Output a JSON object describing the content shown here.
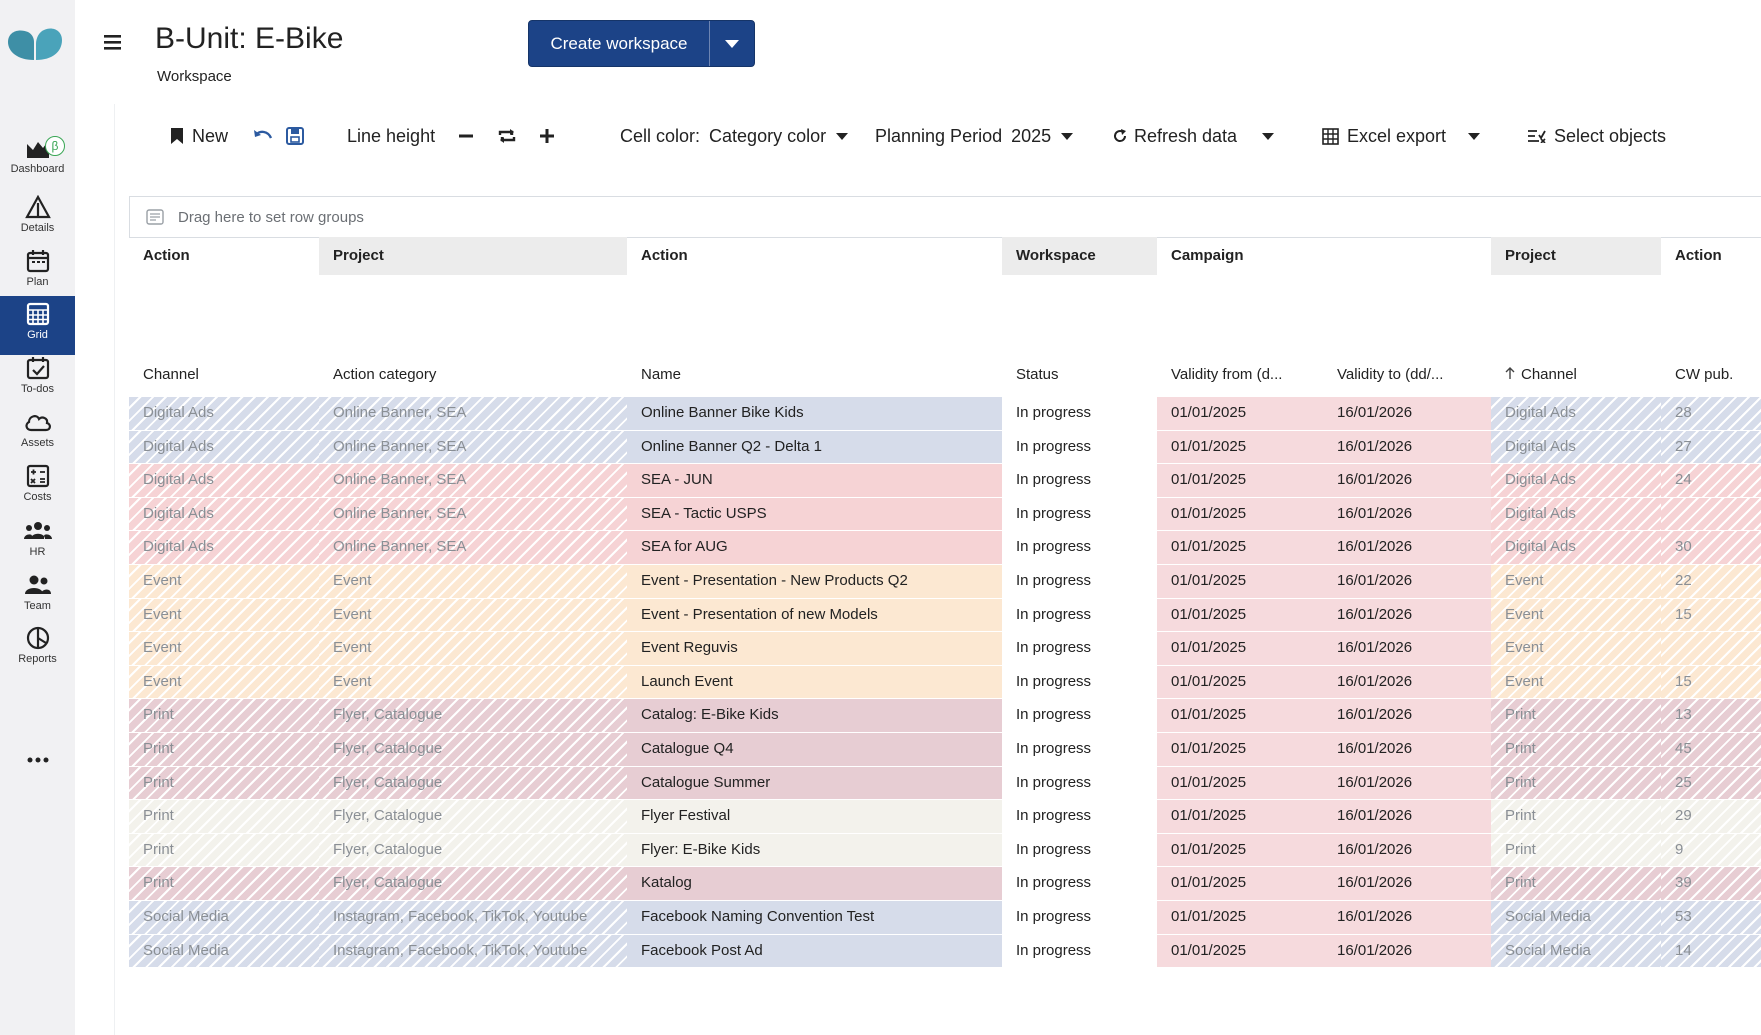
{
  "nav": [
    {
      "label": "Dashboard",
      "icon": "dashboard-icon"
    },
    {
      "label": "Details",
      "icon": "details-icon"
    },
    {
      "label": "Plan",
      "icon": "plan-calendar-icon"
    },
    {
      "label": "Grid",
      "icon": "grid-icon",
      "active": true
    },
    {
      "label": "To-dos",
      "icon": "todo-icon"
    },
    {
      "label": "Assets",
      "icon": "cloud-icon"
    },
    {
      "label": "Costs",
      "icon": "costs-icon"
    },
    {
      "label": "HR",
      "icon": "hr-group-icon"
    },
    {
      "label": "Team",
      "icon": "team-icon"
    },
    {
      "label": "Reports",
      "icon": "reports-icon"
    }
  ],
  "beta_badge": "β",
  "more_icon": "more-dots-icon",
  "header": {
    "title": "B-Unit: E-Bike",
    "subtitle": "Workspace",
    "create_button": "Create workspace"
  },
  "toolbar": {
    "new_label": "New",
    "line_height_label": "Line height",
    "cell_color_label": "Cell color:",
    "cell_color_value": "Category color",
    "planning_period_label": "Planning Period",
    "planning_period_value": "2025",
    "refresh_label": "Refresh data",
    "excel_label": "Excel export",
    "select_objects_label": "Select objects"
  },
  "group_bar": {
    "placeholder": "Drag here to set row groups"
  },
  "grid": {
    "group_headers": [
      "Action",
      "Project",
      "Action",
      "Workspace",
      "Campaign",
      "Project",
      "Action"
    ],
    "columns": [
      "Channel",
      "Action category",
      "Name",
      "Status",
      "Validity from (d...",
      "Validity to (dd/...",
      "Channel",
      "CW pub."
    ],
    "sort_icon": "sort-ascending-icon",
    "rows": [
      {
        "channel": "Digital Ads",
        "category": "Online Banner, SEA",
        "name": "Online Banner Bike Kids",
        "status": "In progress",
        "from": "01/01/2025",
        "to": "16/01/2026",
        "channel2": "Digital Ads",
        "cw": "28",
        "color": "#d6dcea"
      },
      {
        "channel": "Digital Ads",
        "category": "Online Banner, SEA",
        "name": "Online Banner Q2 - Delta 1",
        "status": "In progress",
        "from": "01/01/2025",
        "to": "16/01/2026",
        "channel2": "Digital Ads",
        "cw": "27",
        "color": "#d6dcea"
      },
      {
        "channel": "Digital Ads",
        "category": "Online Banner, SEA",
        "name": "SEA - JUN",
        "status": "In progress",
        "from": "01/01/2025",
        "to": "16/01/2026",
        "channel2": "Digital Ads",
        "cw": "24",
        "color": "#f6d3d5"
      },
      {
        "channel": "Digital Ads",
        "category": "Online Banner, SEA",
        "name": "SEA - Tactic USPS",
        "status": "In progress",
        "from": "01/01/2025",
        "to": "16/01/2026",
        "channel2": "Digital Ads",
        "cw": "",
        "color": "#f6d3d5"
      },
      {
        "channel": "Digital Ads",
        "category": "Online Banner, SEA",
        "name": "SEA for AUG",
        "status": "In progress",
        "from": "01/01/2025",
        "to": "16/01/2026",
        "channel2": "Digital Ads",
        "cw": "30",
        "color": "#f6d3d5"
      },
      {
        "channel": "Event",
        "category": "Event",
        "name": "Event - Presentation - New Products Q2",
        "status": "In progress",
        "from": "01/01/2025",
        "to": "16/01/2026",
        "channel2": "Event",
        "cw": "22",
        "color": "#fce8d2"
      },
      {
        "channel": "Event",
        "category": "Event",
        "name": "Event - Presentation of new Models",
        "status": "In progress",
        "from": "01/01/2025",
        "to": "16/01/2026",
        "channel2": "Event",
        "cw": "15",
        "color": "#fce8d2"
      },
      {
        "channel": "Event",
        "category": "Event",
        "name": "Event Reguvis",
        "status": "In progress",
        "from": "01/01/2025",
        "to": "16/01/2026",
        "channel2": "Event",
        "cw": "",
        "color": "#fce8d2"
      },
      {
        "channel": "Event",
        "category": "Event",
        "name": "Launch Event",
        "status": "In progress",
        "from": "01/01/2025",
        "to": "16/01/2026",
        "channel2": "Event",
        "cw": "15",
        "color": "#fce8d2"
      },
      {
        "channel": "Print",
        "category": "Flyer, Catalogue",
        "name": "Catalog: E-Bike Kids",
        "status": "In progress",
        "from": "01/01/2025",
        "to": "16/01/2026",
        "channel2": "Print",
        "cw": "13",
        "color": "#e7cdd3"
      },
      {
        "channel": "Print",
        "category": "Flyer, Catalogue",
        "name": "Catalogue Q4",
        "status": "In progress",
        "from": "01/01/2025",
        "to": "16/01/2026",
        "channel2": "Print",
        "cw": "45",
        "color": "#e7cdd3"
      },
      {
        "channel": "Print",
        "category": "Flyer, Catalogue",
        "name": "Catalogue Summer",
        "status": "In progress",
        "from": "01/01/2025",
        "to": "16/01/2026",
        "channel2": "Print",
        "cw": "25",
        "color": "#e7cdd3"
      },
      {
        "channel": "Print",
        "category": "Flyer, Catalogue",
        "name": "Flyer Festival",
        "status": "In progress",
        "from": "01/01/2025",
        "to": "16/01/2026",
        "channel2": "Print",
        "cw": "29",
        "color": "#f3f2ec"
      },
      {
        "channel": "Print",
        "category": "Flyer, Catalogue",
        "name": "Flyer: E-Bike Kids",
        "status": "In progress",
        "from": "01/01/2025",
        "to": "16/01/2026",
        "channel2": "Print",
        "cw": "9",
        "color": "#f3f2ec"
      },
      {
        "channel": "Print",
        "category": "Flyer, Catalogue",
        "name": "Katalog",
        "status": "In progress",
        "from": "01/01/2025",
        "to": "16/01/2026",
        "channel2": "Print",
        "cw": "39",
        "color": "#e7cdd3"
      },
      {
        "channel": "Social Media",
        "category": "Instagram, Facebook, TikTok, Youtube",
        "name": "Facebook Naming Convention Test",
        "status": "In progress",
        "from": "01/01/2025",
        "to": "16/01/2026",
        "channel2": "Social Media",
        "cw": "53",
        "color": "#d6dcea"
      },
      {
        "channel": "Social Media",
        "category": "Instagram, Facebook, TikTok, Youtube",
        "name": "Facebook Post Ad",
        "status": "In progress",
        "from": "01/01/2025",
        "to": "16/01/2026",
        "channel2": "Social Media",
        "cw": "14",
        "color": "#d6dcea"
      }
    ]
  },
  "colors": {
    "brand": "#1c4387",
    "logo": "#3e8fa6",
    "date_cells": "#f6dadd"
  }
}
